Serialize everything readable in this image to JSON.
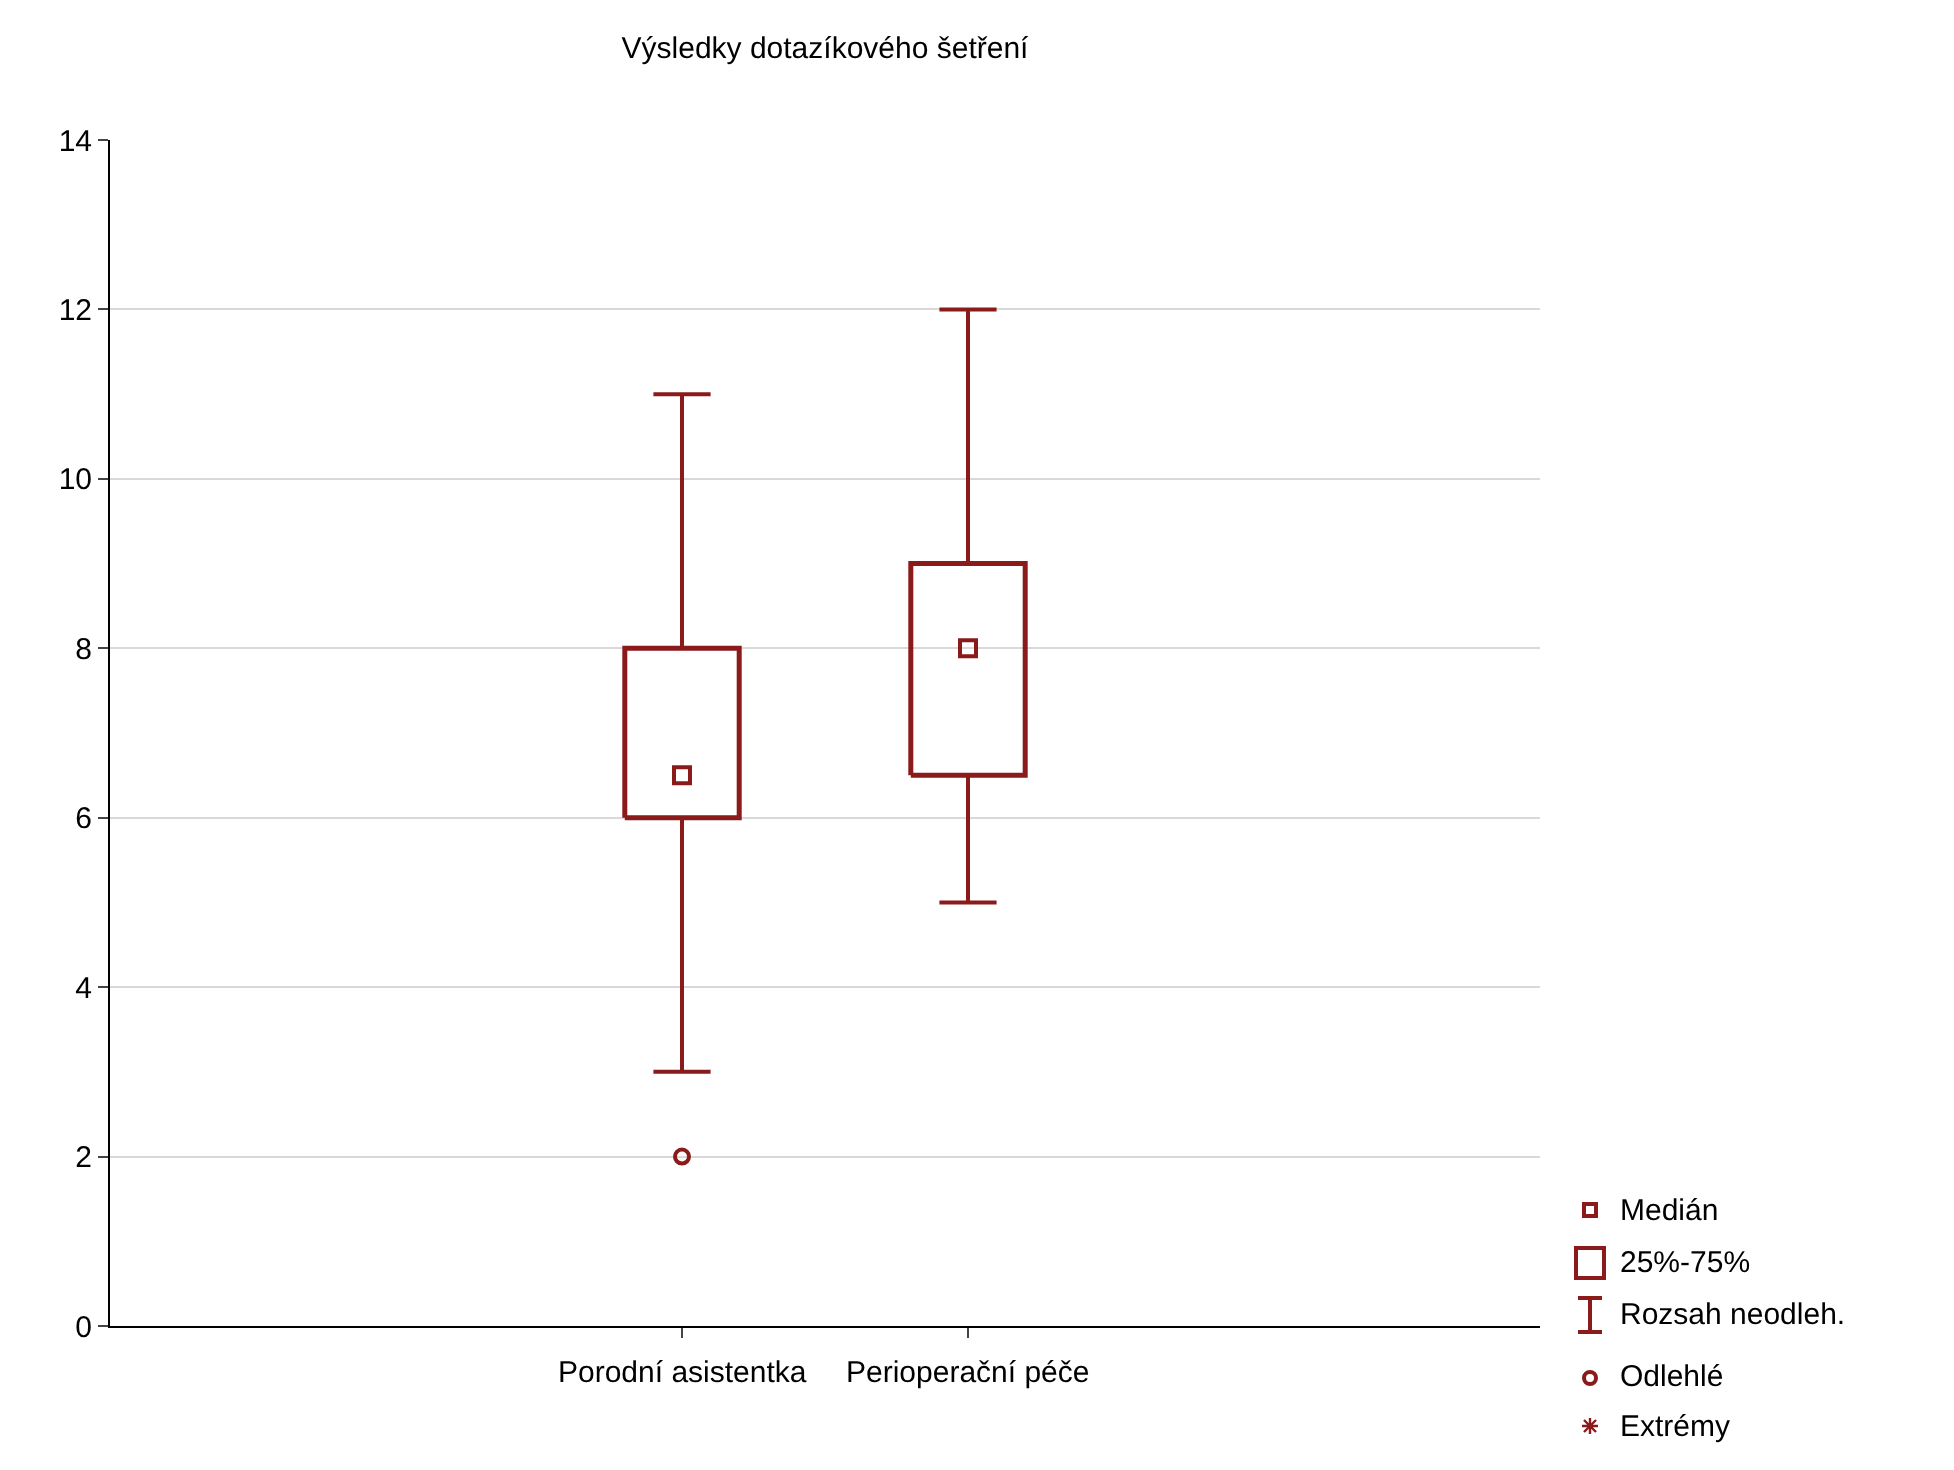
{
  "chart_data": {
    "type": "box",
    "title": "Výsledky dotazíkového šetření",
    "categories": [
      "Porodní asistentka",
      "Perioperační péče"
    ],
    "color": "#8b1a1a",
    "boxes": [
      {
        "low": 3,
        "q1": 6,
        "median": 6.5,
        "q3": 8,
        "high": 11,
        "outliers": [
          2
        ]
      },
      {
        "low": 5,
        "q1": 6.5,
        "median": 8,
        "q3": 9,
        "high": 12
      }
    ],
    "ylim": [
      0,
      14
    ],
    "yticks": [
      0,
      2,
      4,
      6,
      8,
      10,
      12,
      14
    ],
    "grid": "y",
    "marker": "square",
    "annotations": [
      "Medián",
      "25%-75%",
      "Rozsah neodleh.",
      "Odlehlé",
      "Extrémy"
    ]
  }
}
